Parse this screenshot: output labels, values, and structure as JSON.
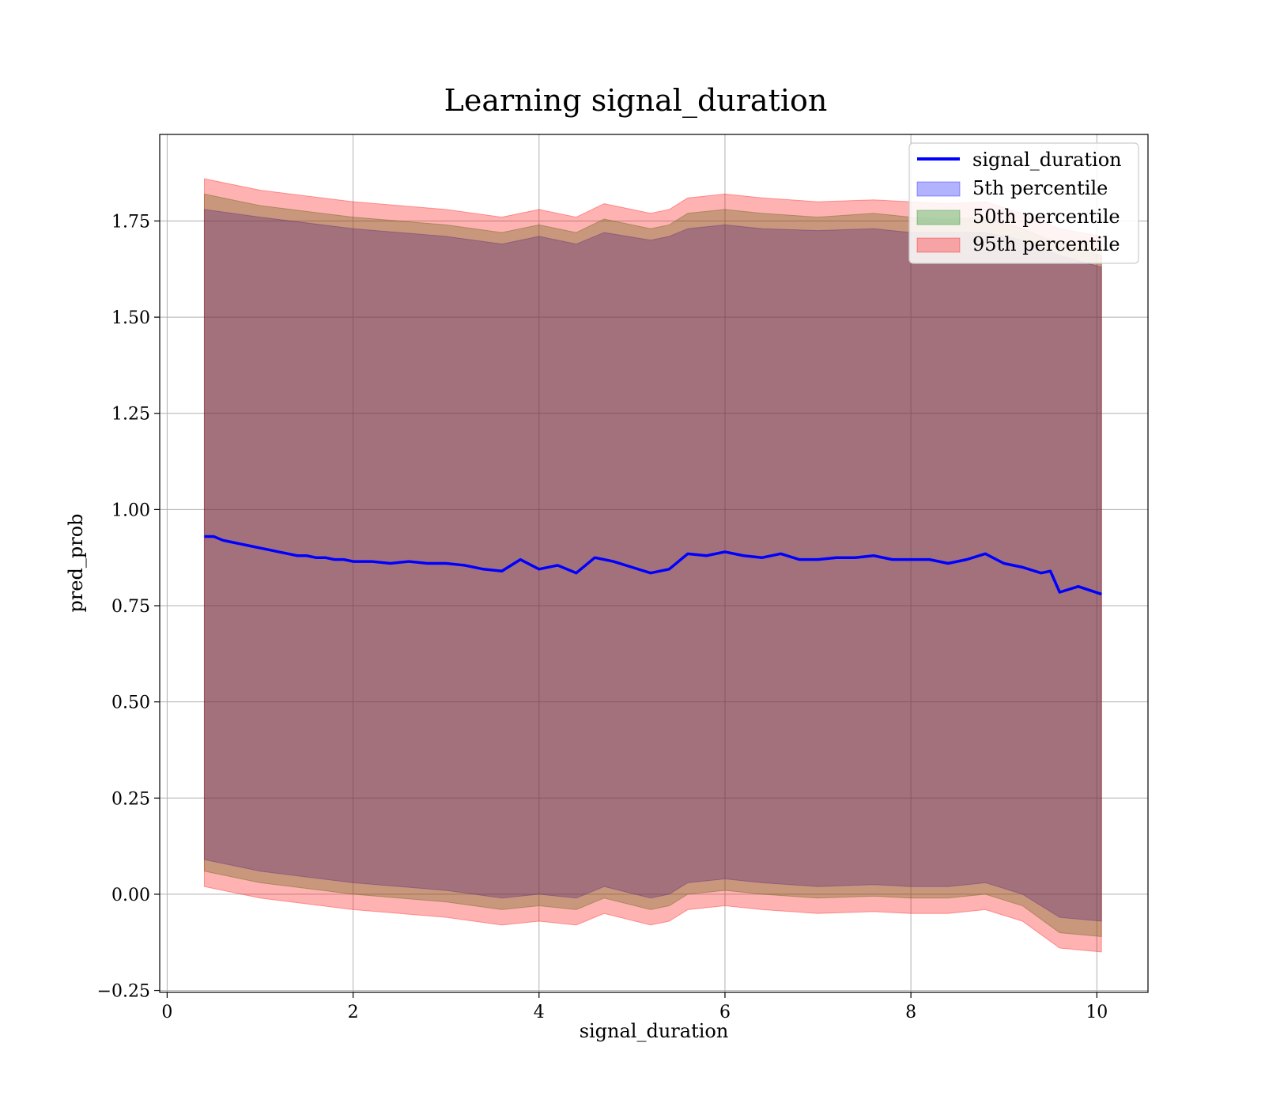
{
  "chart_data": {
    "type": "line",
    "title": "Learning signal_duration",
    "xlabel": "signal_duration",
    "ylabel": "pred_prob",
    "xlim": [
      -0.08,
      10.55
    ],
    "ylim": [
      -0.255,
      1.975
    ],
    "xticks": [
      0,
      2,
      4,
      6,
      8,
      10
    ],
    "xtick_labels": [
      "0",
      "2",
      "4",
      "6",
      "8",
      "10"
    ],
    "yticks": [
      -0.25,
      0.0,
      0.25,
      0.5,
      0.75,
      1.0,
      1.25,
      1.5,
      1.75
    ],
    "ytick_labels": [
      "−0.25",
      "0.00",
      "0.25",
      "0.50",
      "0.75",
      "1.00",
      "1.25",
      "1.50",
      "1.75"
    ],
    "grid": true,
    "legend_position": "top-right",
    "line_series": {
      "name": "signal_duration",
      "color": "#0000ff",
      "x": [
        0.4,
        0.5,
        0.6,
        0.7,
        0.8,
        0.9,
        1.0,
        1.1,
        1.2,
        1.3,
        1.4,
        1.5,
        1.6,
        1.7,
        1.8,
        1.9,
        2.0,
        2.2,
        2.4,
        2.6,
        2.8,
        3.0,
        3.2,
        3.4,
        3.6,
        3.8,
        4.0,
        4.2,
        4.4,
        4.6,
        4.8,
        5.0,
        5.2,
        5.4,
        5.6,
        5.8,
        6.0,
        6.2,
        6.4,
        6.6,
        6.8,
        7.0,
        7.2,
        7.4,
        7.6,
        7.8,
        8.0,
        8.2,
        8.4,
        8.6,
        8.8,
        9.0,
        9.2,
        9.4,
        9.5,
        9.6,
        9.8,
        10.05
      ],
      "y": [
        0.93,
        0.93,
        0.92,
        0.915,
        0.91,
        0.905,
        0.9,
        0.895,
        0.89,
        0.885,
        0.88,
        0.88,
        0.875,
        0.875,
        0.87,
        0.87,
        0.865,
        0.865,
        0.86,
        0.865,
        0.86,
        0.86,
        0.855,
        0.845,
        0.84,
        0.87,
        0.845,
        0.855,
        0.835,
        0.875,
        0.865,
        0.85,
        0.835,
        0.845,
        0.885,
        0.88,
        0.89,
        0.88,
        0.875,
        0.885,
        0.87,
        0.87,
        0.875,
        0.875,
        0.88,
        0.87,
        0.87,
        0.87,
        0.86,
        0.87,
        0.885,
        0.86,
        0.85,
        0.835,
        0.84,
        0.785,
        0.8,
        0.78
      ]
    },
    "bands": [
      {
        "name": "5th percentile",
        "color": "#0000ff",
        "x": [
          0.4,
          1.0,
          2.0,
          3.0,
          3.6,
          4.0,
          4.4,
          4.7,
          5.2,
          5.4,
          5.6,
          6.0,
          6.4,
          7.0,
          7.6,
          8.0,
          8.4,
          8.8,
          9.2,
          9.6,
          10.05
        ],
        "upper": [
          1.78,
          1.76,
          1.73,
          1.71,
          1.69,
          1.71,
          1.69,
          1.72,
          1.7,
          1.71,
          1.73,
          1.74,
          1.73,
          1.725,
          1.73,
          1.72,
          1.72,
          1.72,
          1.7,
          1.66,
          1.63
        ],
        "lower": [
          0.09,
          0.06,
          0.03,
          0.01,
          -0.01,
          0.0,
          -0.01,
          0.02,
          -0.01,
          0.0,
          0.03,
          0.04,
          0.03,
          0.02,
          0.025,
          0.02,
          0.02,
          0.03,
          0.0,
          -0.06,
          -0.07
        ]
      },
      {
        "name": "50th percentile",
        "color": "#008000",
        "x": [
          0.4,
          1.0,
          2.0,
          3.0,
          3.6,
          4.0,
          4.4,
          4.7,
          5.2,
          5.4,
          5.6,
          6.0,
          6.4,
          7.0,
          7.6,
          8.0,
          8.4,
          8.8,
          9.2,
          9.6,
          10.05
        ],
        "upper": [
          1.82,
          1.79,
          1.76,
          1.74,
          1.72,
          1.74,
          1.72,
          1.755,
          1.73,
          1.74,
          1.77,
          1.78,
          1.77,
          1.76,
          1.77,
          1.76,
          1.755,
          1.76,
          1.73,
          1.69,
          1.66
        ],
        "lower": [
          0.06,
          0.03,
          0.0,
          -0.02,
          -0.04,
          -0.03,
          -0.04,
          -0.01,
          -0.04,
          -0.03,
          0.0,
          0.01,
          0.0,
          -0.01,
          -0.005,
          -0.01,
          -0.01,
          0.0,
          -0.03,
          -0.1,
          -0.11
        ]
      },
      {
        "name": "95th percentile",
        "color": "#ff0000",
        "x": [
          0.4,
          1.0,
          2.0,
          3.0,
          3.6,
          4.0,
          4.4,
          4.7,
          5.2,
          5.4,
          5.6,
          6.0,
          6.4,
          7.0,
          7.6,
          8.0,
          8.4,
          8.8,
          9.2,
          9.6,
          10.05
        ],
        "upper": [
          1.86,
          1.83,
          1.8,
          1.78,
          1.76,
          1.78,
          1.76,
          1.795,
          1.77,
          1.78,
          1.81,
          1.82,
          1.81,
          1.8,
          1.805,
          1.8,
          1.795,
          1.8,
          1.77,
          1.73,
          1.71
        ],
        "lower": [
          0.02,
          -0.01,
          -0.04,
          -0.06,
          -0.08,
          -0.07,
          -0.08,
          -0.05,
          -0.08,
          -0.07,
          -0.04,
          -0.03,
          -0.04,
          -0.05,
          -0.045,
          -0.05,
          -0.05,
          -0.04,
          -0.07,
          -0.14,
          -0.15
        ]
      }
    ]
  },
  "legend": {
    "items": [
      {
        "label": "signal_duration",
        "kind": "line",
        "color": "#0000ff"
      },
      {
        "label": "5th percentile",
        "kind": "patch",
        "color": "#0000ff"
      },
      {
        "label": "50th percentile",
        "kind": "patch",
        "color": "#008000"
      },
      {
        "label": "95th percentile",
        "kind": "patch",
        "color": "#ff0000"
      }
    ]
  }
}
